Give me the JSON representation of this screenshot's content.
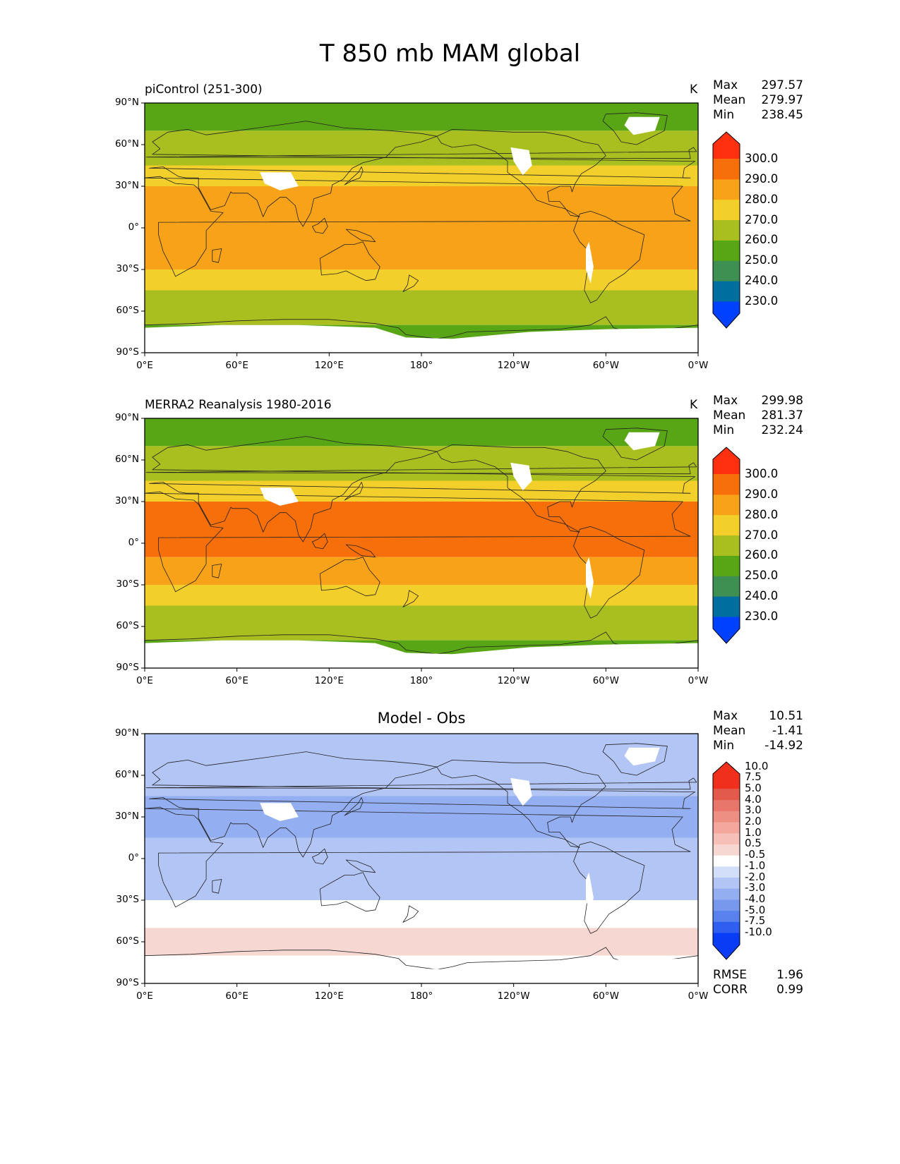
{
  "title": "T 850 mb MAM global",
  "panels": [
    {
      "left_title": "piControl (251-300)",
      "center_title": "",
      "units": "K",
      "stats": [
        [
          "Max",
          "297.57"
        ],
        [
          "Mean",
          "279.97"
        ],
        [
          "Min",
          "238.45"
        ]
      ],
      "colorbar": {
        "colors": [
          "#0040ff",
          "#006f9f",
          "#3d8f52",
          "#58a615",
          "#a8bf1f",
          "#f2cf2a",
          "#f8a21a",
          "#f76f0a",
          "#ff3010"
        ],
        "labels": [
          "230.0",
          "240.0",
          "250.0",
          "260.0",
          "270.0",
          "280.0",
          "290.0",
          "300.0"
        ]
      },
      "extra_stats": []
    },
    {
      "left_title": "MERRA2 Reanalysis 1980-2016",
      "center_title": "",
      "units": "K",
      "stats": [
        [
          "Max",
          "299.98"
        ],
        [
          "Mean",
          "281.37"
        ],
        [
          "Min",
          "232.24"
        ]
      ],
      "colorbar": {
        "colors": [
          "#0040ff",
          "#006f9f",
          "#3d8f52",
          "#58a615",
          "#a8bf1f",
          "#f2cf2a",
          "#f8a21a",
          "#f76f0a",
          "#ff3010"
        ],
        "labels": [
          "230.0",
          "240.0",
          "250.0",
          "260.0",
          "270.0",
          "280.0",
          "290.0",
          "300.0"
        ]
      },
      "extra_stats": []
    },
    {
      "left_title": "",
      "center_title": "Model - Obs",
      "units": "",
      "stats": [
        [
          "Max",
          "10.51"
        ],
        [
          "Mean",
          "-1.41"
        ],
        [
          "Min",
          "-14.92"
        ]
      ],
      "colorbar": {
        "colors": [
          "#0a3cf5",
          "#2f5ef0",
          "#5a82ee",
          "#7898ee",
          "#94aef2",
          "#b3c5f5",
          "#d3def8",
          "#ffffff",
          "#f7d7d2",
          "#f6c0b8",
          "#f3a79d",
          "#ee8f83",
          "#e9766a",
          "#e25a4c",
          "#f0301c"
        ],
        "labels": [
          "-10.0",
          "-7.5",
          "-5.0",
          "-4.0",
          "-3.0",
          "-2.0",
          "-1.0",
          "-0.5",
          "0.5",
          "1.0",
          "2.0",
          "3.0",
          "4.0",
          "5.0",
          "7.5",
          "10.0"
        ]
      },
      "extra_stats": [
        [
          "RMSE",
          "1.96"
        ],
        [
          "CORR",
          "0.99"
        ]
      ]
    }
  ],
  "axes": {
    "xticks": [
      "0°E",
      "60°E",
      "120°E",
      "180°",
      "120°W",
      "60°W",
      "0°W"
    ],
    "yticks": [
      "90°N",
      "60°N",
      "30°N",
      "0°",
      "30°S",
      "60°S",
      "90°S"
    ]
  },
  "chart_data": [
    {
      "type": "heatmap",
      "title": "piControl (251-300)",
      "variable": "T 850 mb MAM global",
      "units": "K",
      "x_range": [
        0,
        360
      ],
      "y_range": [
        -90,
        90
      ],
      "levels": [
        230,
        240,
        250,
        260,
        270,
        280,
        290,
        300
      ],
      "extend": "both",
      "stats": {
        "max": 297.57,
        "mean": 279.97,
        "min": 238.45
      },
      "zonal_bands": [
        {
          "lat_min": 70,
          "lat_max": 90,
          "value_range": "250-260"
        },
        {
          "lat_min": 45,
          "lat_max": 70,
          "value_range": "260-270"
        },
        {
          "lat_min": 30,
          "lat_max": 45,
          "value_range": "270-280"
        },
        {
          "lat_min": -30,
          "lat_max": 30,
          "value_range": "280-290"
        },
        {
          "lat_min": -45,
          "lat_max": -30,
          "value_range": "270-280"
        },
        {
          "lat_min": -70,
          "lat_max": -45,
          "value_range": "260-270"
        },
        {
          "lat_min": -90,
          "lat_max": -70,
          "value_range": "250-260"
        }
      ]
    },
    {
      "type": "heatmap",
      "title": "MERRA2 Reanalysis 1980-2016",
      "variable": "T 850 mb MAM global",
      "units": "K",
      "x_range": [
        0,
        360
      ],
      "y_range": [
        -90,
        90
      ],
      "levels": [
        230,
        240,
        250,
        260,
        270,
        280,
        290,
        300
      ],
      "extend": "both",
      "stats": {
        "max": 299.98,
        "mean": 281.37,
        "min": 232.24
      },
      "zonal_bands": [
        {
          "lat_min": 70,
          "lat_max": 90,
          "value_range": "250-260"
        },
        {
          "lat_min": 45,
          "lat_max": 70,
          "value_range": "260-270"
        },
        {
          "lat_min": 30,
          "lat_max": 45,
          "value_range": "270-280"
        },
        {
          "lat_min": -10,
          "lat_max": 30,
          "value_range": "290-300"
        },
        {
          "lat_min": -30,
          "lat_max": -10,
          "value_range": "280-290"
        },
        {
          "lat_min": -45,
          "lat_max": -30,
          "value_range": "270-280"
        },
        {
          "lat_min": -70,
          "lat_max": -45,
          "value_range": "260-270"
        },
        {
          "lat_min": -90,
          "lat_max": -70,
          "value_range": "250-260"
        }
      ]
    },
    {
      "type": "heatmap",
      "title": "Model - Obs",
      "variable": "T 850 mb MAM global",
      "x_range": [
        0,
        360
      ],
      "y_range": [
        -90,
        90
      ],
      "levels": [
        -10.0,
        -7.5,
        -5.0,
        -4.0,
        -3.0,
        -2.0,
        -1.0,
        -0.5,
        0.5,
        1.0,
        2.0,
        3.0,
        4.0,
        5.0,
        7.5,
        10.0
      ],
      "extend": "both",
      "stats": {
        "max": 10.51,
        "mean": -1.41,
        "min": -14.92,
        "rmse": 1.96,
        "corr": 0.99
      },
      "zonal_bands": [
        {
          "lat_min": 45,
          "lat_max": 90,
          "value_range": "-2.0 to -1.0"
        },
        {
          "lat_min": 15,
          "lat_max": 45,
          "value_range": "-3.0 to -2.0"
        },
        {
          "lat_min": -30,
          "lat_max": 15,
          "value_range": "-2.0 to -1.0"
        },
        {
          "lat_min": -50,
          "lat_max": -30,
          "value_range": "-0.5 to 0.5"
        },
        {
          "lat_min": -70,
          "lat_max": -50,
          "value_range": "0.5 to 2.0"
        },
        {
          "lat_min": -90,
          "lat_max": -70,
          "value_range": "-0.5 to 0.5"
        }
      ]
    }
  ]
}
